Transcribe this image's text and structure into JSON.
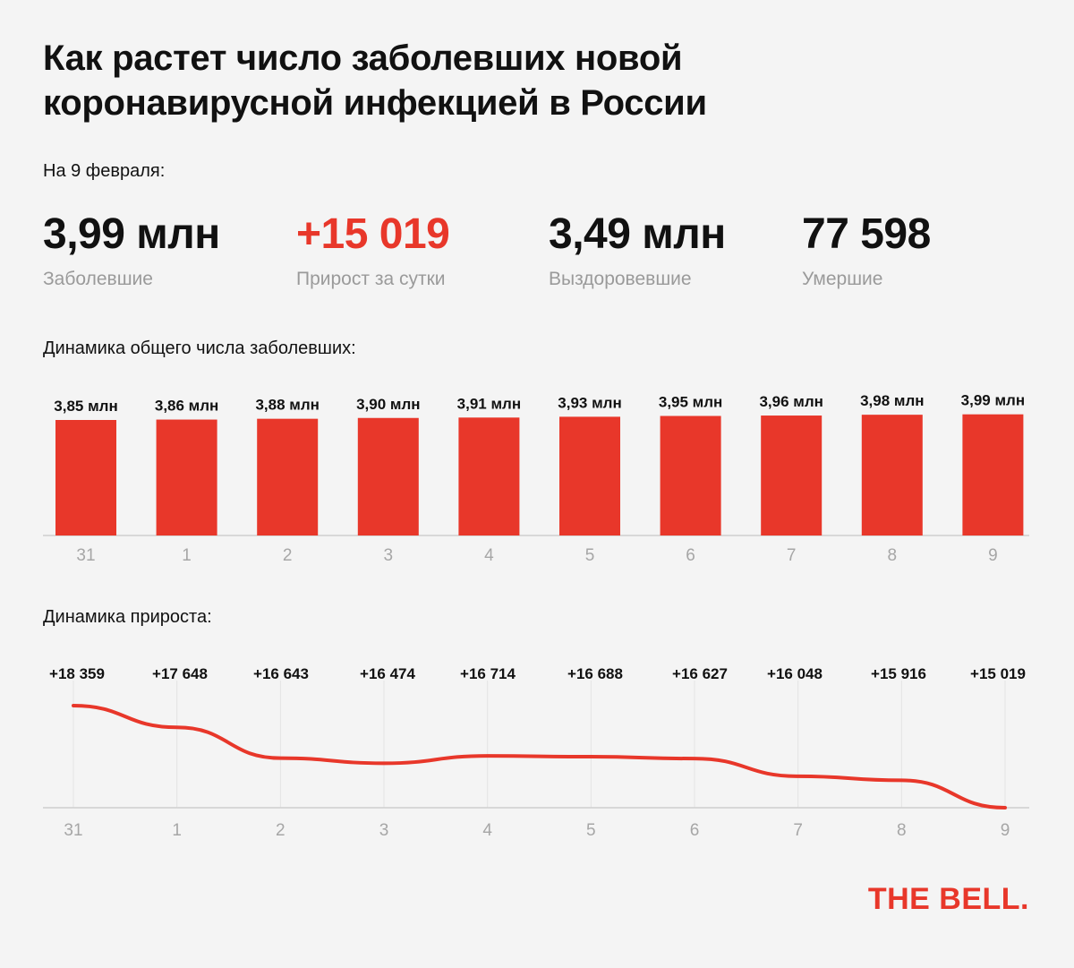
{
  "title": "Как растет число заболевших новой коронавирусной инфекцией в России",
  "date_label": "На 9 февраля:",
  "stats": [
    {
      "value": "3,99 млн",
      "label": "Заболевшие"
    },
    {
      "value": "+15 019",
      "label": "Прирост за сутки"
    },
    {
      "value": "3,49 млн",
      "label": "Выздоровевшие"
    },
    {
      "value": "77 598",
      "label": "Умершие"
    }
  ],
  "colors": {
    "accent": "#e8372a",
    "muted": "#9a9a9a",
    "background": "#f4f4f4"
  },
  "bar_section_title": "Динамика общего числа заболевших:",
  "line_section_title": "Динамика прироста:",
  "logo": "THE BELL.",
  "chart_data": [
    {
      "type": "bar",
      "title": "Динамика общего числа заболевших:",
      "categories": [
        "31",
        "1",
        "2",
        "3",
        "4",
        "5",
        "6",
        "7",
        "8",
        "9"
      ],
      "values": [
        3.85,
        3.86,
        3.88,
        3.9,
        3.91,
        3.93,
        3.95,
        3.96,
        3.98,
        3.99
      ],
      "labels": [
        "3,85 млн",
        "3,86 млн",
        "3,88 млн",
        "3,90 млн",
        "3,91 млн",
        "3,93 млн",
        "3,95 млн",
        "3,96 млн",
        "3,98 млн",
        "3,99 млн"
      ],
      "unit": "млн",
      "color": "#e8372a"
    },
    {
      "type": "line",
      "title": "Динамика прироста:",
      "categories": [
        "31",
        "1",
        "2",
        "3",
        "4",
        "5",
        "6",
        "7",
        "8",
        "9"
      ],
      "values": [
        18359,
        17648,
        16643,
        16474,
        16714,
        16688,
        16627,
        16048,
        15916,
        15019
      ],
      "labels": [
        "+18 359",
        "+17 648",
        "+16 643",
        "+16 474",
        "+16 714",
        "+16 688",
        "+16 627",
        "+16 048",
        "+15 916",
        "+15 019"
      ],
      "color": "#e8372a",
      "grid": true
    }
  ]
}
